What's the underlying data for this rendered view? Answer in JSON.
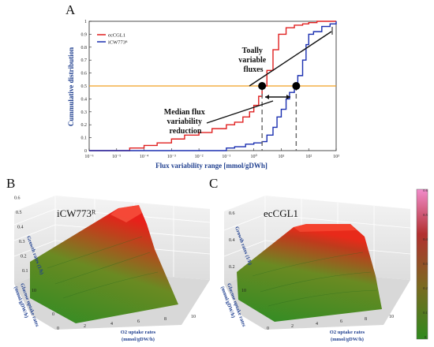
{
  "panel_labels": {
    "a": "A",
    "b": "B",
    "c": "C"
  },
  "chart_data": [
    {
      "type": "line",
      "xlabel": "Flux variability range [mmol/gDWh]",
      "ylabel": "Cummulative distribution",
      "xscale": "log",
      "xlim": [
        1e-06,
        1000
      ],
      "ylim": [
        0,
        1
      ],
      "x_tick_labels": [
        "10⁻⁶",
        "10⁻⁵",
        "10⁻⁴",
        "10⁻³",
        "10⁻²",
        "10⁻¹",
        "10⁰",
        "10¹",
        "10²",
        "10³"
      ],
      "y_tick_labels": [
        "0",
        "0.1",
        "0.2",
        "0.3",
        "0.4",
        "0.5",
        "0.6",
        "0.7",
        "0.8",
        "0.9",
        "1"
      ],
      "legend": {
        "placement": "top-left",
        "entries": [
          "ecCGL1",
          "iCW773ᴿ"
        ]
      },
      "median_line": {
        "y": 0.5,
        "color": "#f0a020"
      },
      "median_points": [
        {
          "x": 2,
          "y": 0.5
        },
        {
          "x": 35,
          "y": 0.5
        }
      ],
      "annotations": [
        {
          "lines": [
            "Toally",
            "variable",
            "fluxes"
          ]
        },
        {
          "lines": [
            "Median flux",
            "variability",
            "reduction"
          ]
        }
      ],
      "series": [
        {
          "name": "ecCGL1",
          "color": "#e02020",
          "x": [
            1e-06,
            3e-05,
            0.0001,
            0.0003,
            0.001,
            0.003,
            0.01,
            0.03,
            0.1,
            0.2,
            0.4,
            0.7,
            1,
            1.5,
            2,
            3,
            5,
            8,
            15,
            30,
            60,
            100,
            200,
            500,
            1000
          ],
          "y": [
            0,
            0.02,
            0.04,
            0.06,
            0.09,
            0.12,
            0.14,
            0.17,
            0.2,
            0.22,
            0.26,
            0.3,
            0.35,
            0.42,
            0.5,
            0.62,
            0.78,
            0.9,
            0.95,
            0.97,
            0.98,
            0.99,
            1.0,
            1.0,
            1.0
          ]
        },
        {
          "name": "iCW773ᴿ",
          "color": "#1a2fb0",
          "x": [
            1e-06,
            0.001,
            0.01,
            0.1,
            0.2,
            0.5,
            1,
            2,
            3,
            5,
            7,
            10,
            15,
            20,
            30,
            40,
            60,
            80,
            100,
            150,
            300,
            600,
            1000
          ],
          "y": [
            0,
            0.0,
            0.0,
            0.02,
            0.03,
            0.05,
            0.06,
            0.07,
            0.12,
            0.18,
            0.26,
            0.32,
            0.4,
            0.45,
            0.5,
            0.58,
            0.7,
            0.82,
            0.9,
            0.92,
            0.96,
            0.98,
            1.0
          ]
        }
      ]
    },
    {
      "type": "surface",
      "title": "iCW773ᴿ",
      "zlabel": "Growth rates (1/h)",
      "xlabel": "O2 uptake rates (mmol/gDW/h)",
      "ylabel": "Glucose uptake rates (mmol/gDW/h)",
      "z_ticks": [
        "0.1",
        "0.2",
        "0.3",
        "0.4",
        "0.5",
        "0.6"
      ],
      "x_ticks": [
        "0",
        "2",
        "4",
        "6",
        "8",
        "10"
      ],
      "y_ticks": [
        "0",
        "10"
      ],
      "peak_growth": 0.62
    },
    {
      "type": "surface",
      "title": "ecCGL1",
      "zlabel": "Growth rates (1/h)",
      "xlabel": "O2 uptake rates (mmol/gDW/h)",
      "ylabel": "Glucose uptake rates (mmol/gDW/h)",
      "z_ticks": [
        "0.2",
        "0.4",
        "0.6"
      ],
      "x_ticks": [
        "0",
        "2",
        "4",
        "6",
        "8",
        "10"
      ],
      "y_ticks": [
        "10"
      ],
      "peak_growth": 0.48
    }
  ],
  "colorbar": {
    "ticks": [
      "0",
      "0.1",
      "0.2",
      "0.3",
      "0.4",
      "0.5",
      "0.6"
    ],
    "colors": [
      "#2f8a1e",
      "#6b7a20",
      "#a04020",
      "#d8207a",
      "#f080c8"
    ]
  }
}
